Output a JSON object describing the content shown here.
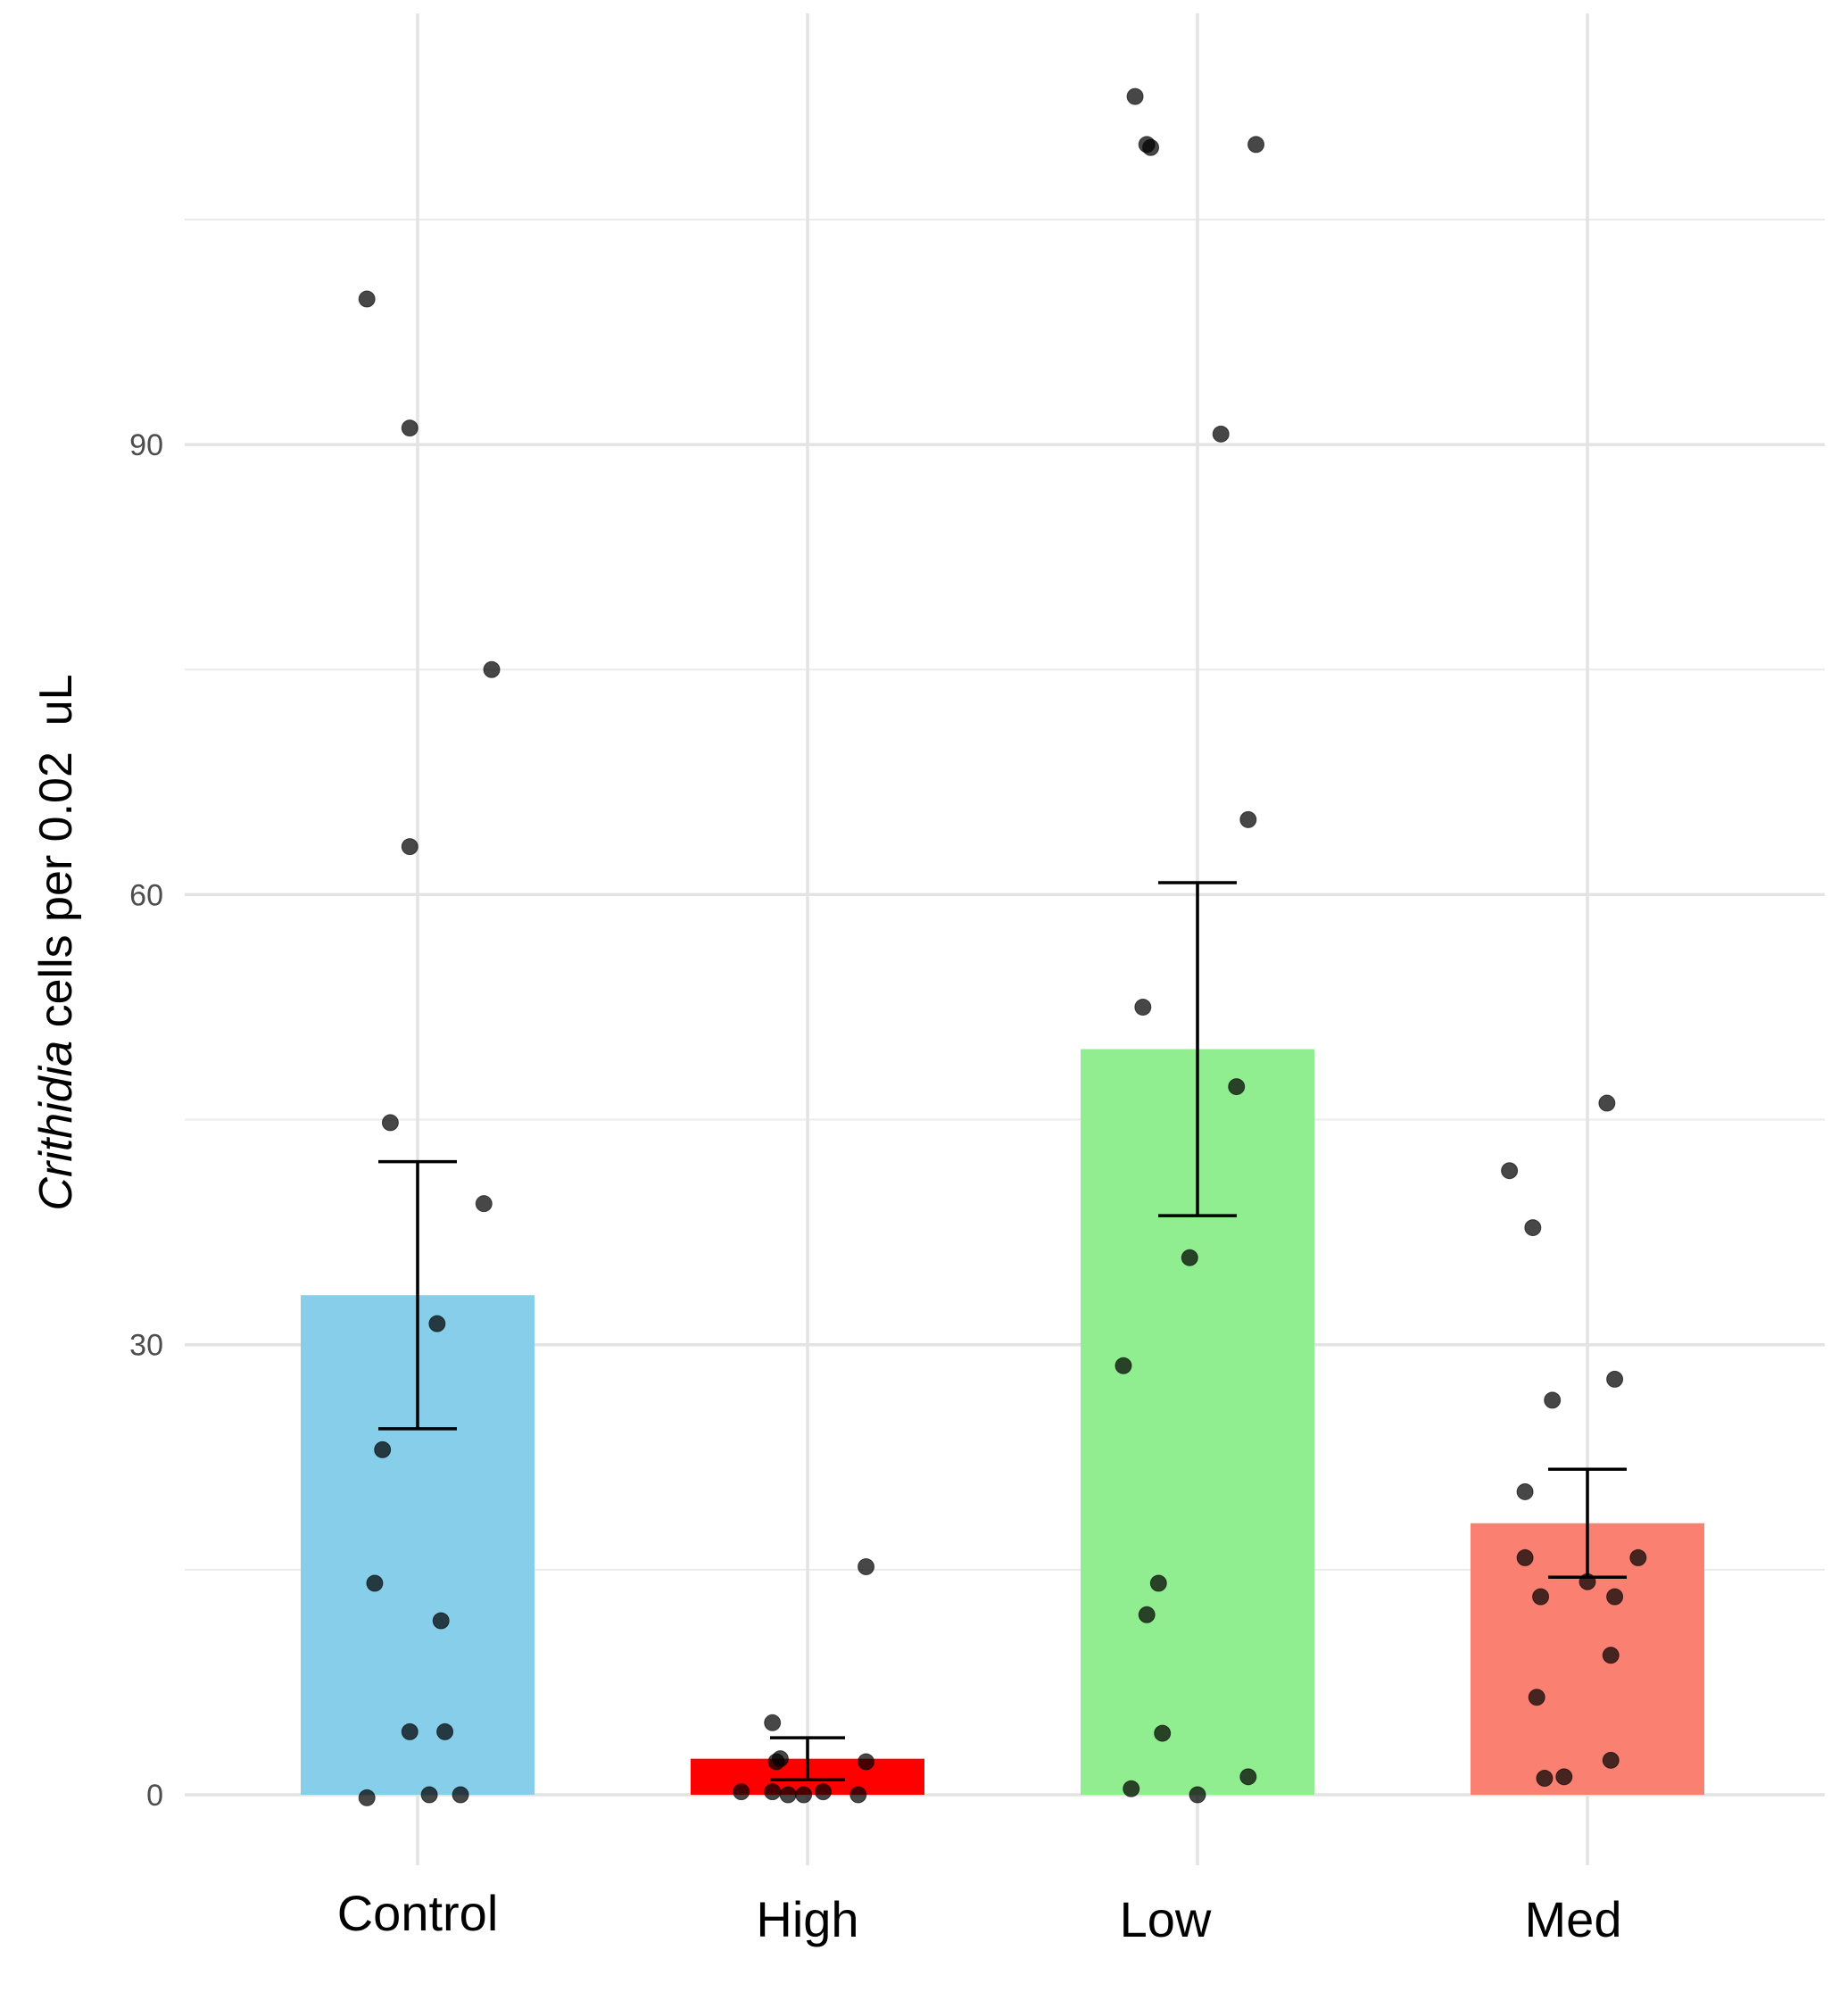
{
  "chart_data": {
    "type": "bar",
    "title": "",
    "xlabel": "",
    "ylabel_italic": "Crithidia",
    "ylabel_rest": " cells per 0.02  uL",
    "categories": [
      "Control",
      "High",
      "Low",
      "Med"
    ],
    "values": [
      33.3,
      2.4,
      49.7,
      18.1
    ],
    "error_bars": {
      "lower": [
        24.4,
        1.0,
        38.6,
        14.5
      ],
      "upper": [
        42.2,
        3.8,
        60.8,
        21.7
      ]
    },
    "bar_colors": [
      "#87CEEB",
      "#FF0000",
      "#90EE90",
      "#FA8072"
    ],
    "points": [
      [
        99.7,
        91.1,
        75.0,
        63.2,
        44.8,
        39.4,
        31.4,
        23.0,
        14.1,
        11.6,
        4.2,
        4.2,
        0.0,
        0.0,
        -0.2
      ],
      [
        15.2,
        4.8,
        2.4,
        2.2,
        2.2,
        0.2,
        0.2,
        0.0,
        0.0,
        0.2,
        0.0
      ],
      [
        113.2,
        110.0,
        109.8,
        110.0,
        90.7,
        65.0,
        52.5,
        47.2,
        35.8,
        28.6,
        14.1,
        12.0,
        4.1,
        1.2,
        0.4,
        0.0
      ],
      [
        46.1,
        41.6,
        37.8,
        27.7,
        26.3,
        20.2,
        15.8,
        15.8,
        14.2,
        13.2,
        13.2,
        9.3,
        6.5,
        2.3,
        1.1,
        1.2
      ]
    ],
    "point_offsets": [
      [
        -0.13,
        -0.02,
        0.19,
        -0.02,
        -0.07,
        0.17,
        0.05,
        -0.09,
        -0.11,
        0.06,
        -0.02,
        0.07,
        0.03,
        0.11,
        -0.13
      ],
      [
        0.15,
        -0.09,
        -0.07,
        -0.08,
        0.15,
        -0.17,
        -0.09,
        -0.05,
        -0.01,
        0.04,
        0.13
      ],
      [
        -0.16,
        -0.13,
        -0.12,
        0.15,
        0.06,
        0.13,
        -0.14,
        0.1,
        -0.02,
        -0.19,
        -0.1,
        -0.13,
        -0.09,
        0.13,
        -0.17,
        0.0
      ],
      [
        0.05,
        -0.2,
        -0.14,
        0.07,
        -0.09,
        -0.16,
        -0.16,
        0.13,
        0.0,
        -0.12,
        0.07,
        0.06,
        -0.13,
        0.06,
        -0.11,
        -0.06
      ]
    ],
    "yticks": [
      0,
      30,
      60,
      90
    ],
    "ylim": [
      -4,
      119
    ],
    "grid": true,
    "legend": "none"
  }
}
